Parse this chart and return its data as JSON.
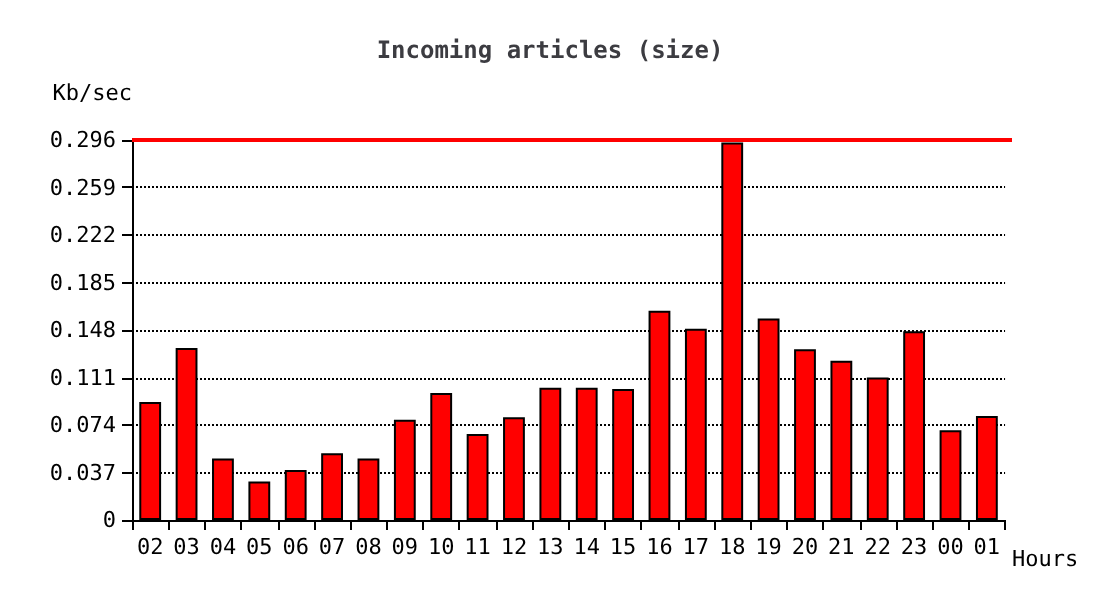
{
  "chart_data": {
    "type": "bar",
    "title": "Incoming articles (size)",
    "xlabel": "Hours",
    "ylabel": "Kb/sec",
    "categories": [
      "02",
      "03",
      "04",
      "05",
      "06",
      "07",
      "08",
      "09",
      "10",
      "11",
      "12",
      "13",
      "14",
      "15",
      "16",
      "17",
      "18",
      "19",
      "20",
      "21",
      "22",
      "23",
      "00",
      "01"
    ],
    "values": [
      0.092,
      0.134,
      0.048,
      0.03,
      0.039,
      0.052,
      0.048,
      0.078,
      0.099,
      0.067,
      0.08,
      0.103,
      0.103,
      0.102,
      0.163,
      0.149,
      0.294,
      0.157,
      0.133,
      0.124,
      0.111,
      0.147,
      0.07,
      0.081
    ],
    "color": "#ff0000",
    "ylim": [
      0,
      0.296
    ],
    "yticks": [
      0,
      0.037,
      0.074,
      0.111,
      0.148,
      0.185,
      0.222,
      0.259,
      0.296
    ],
    "grid": "y",
    "ref_lines": [
      {
        "axis": "y",
        "value": 0.296,
        "color": "#ff0000"
      }
    ]
  }
}
